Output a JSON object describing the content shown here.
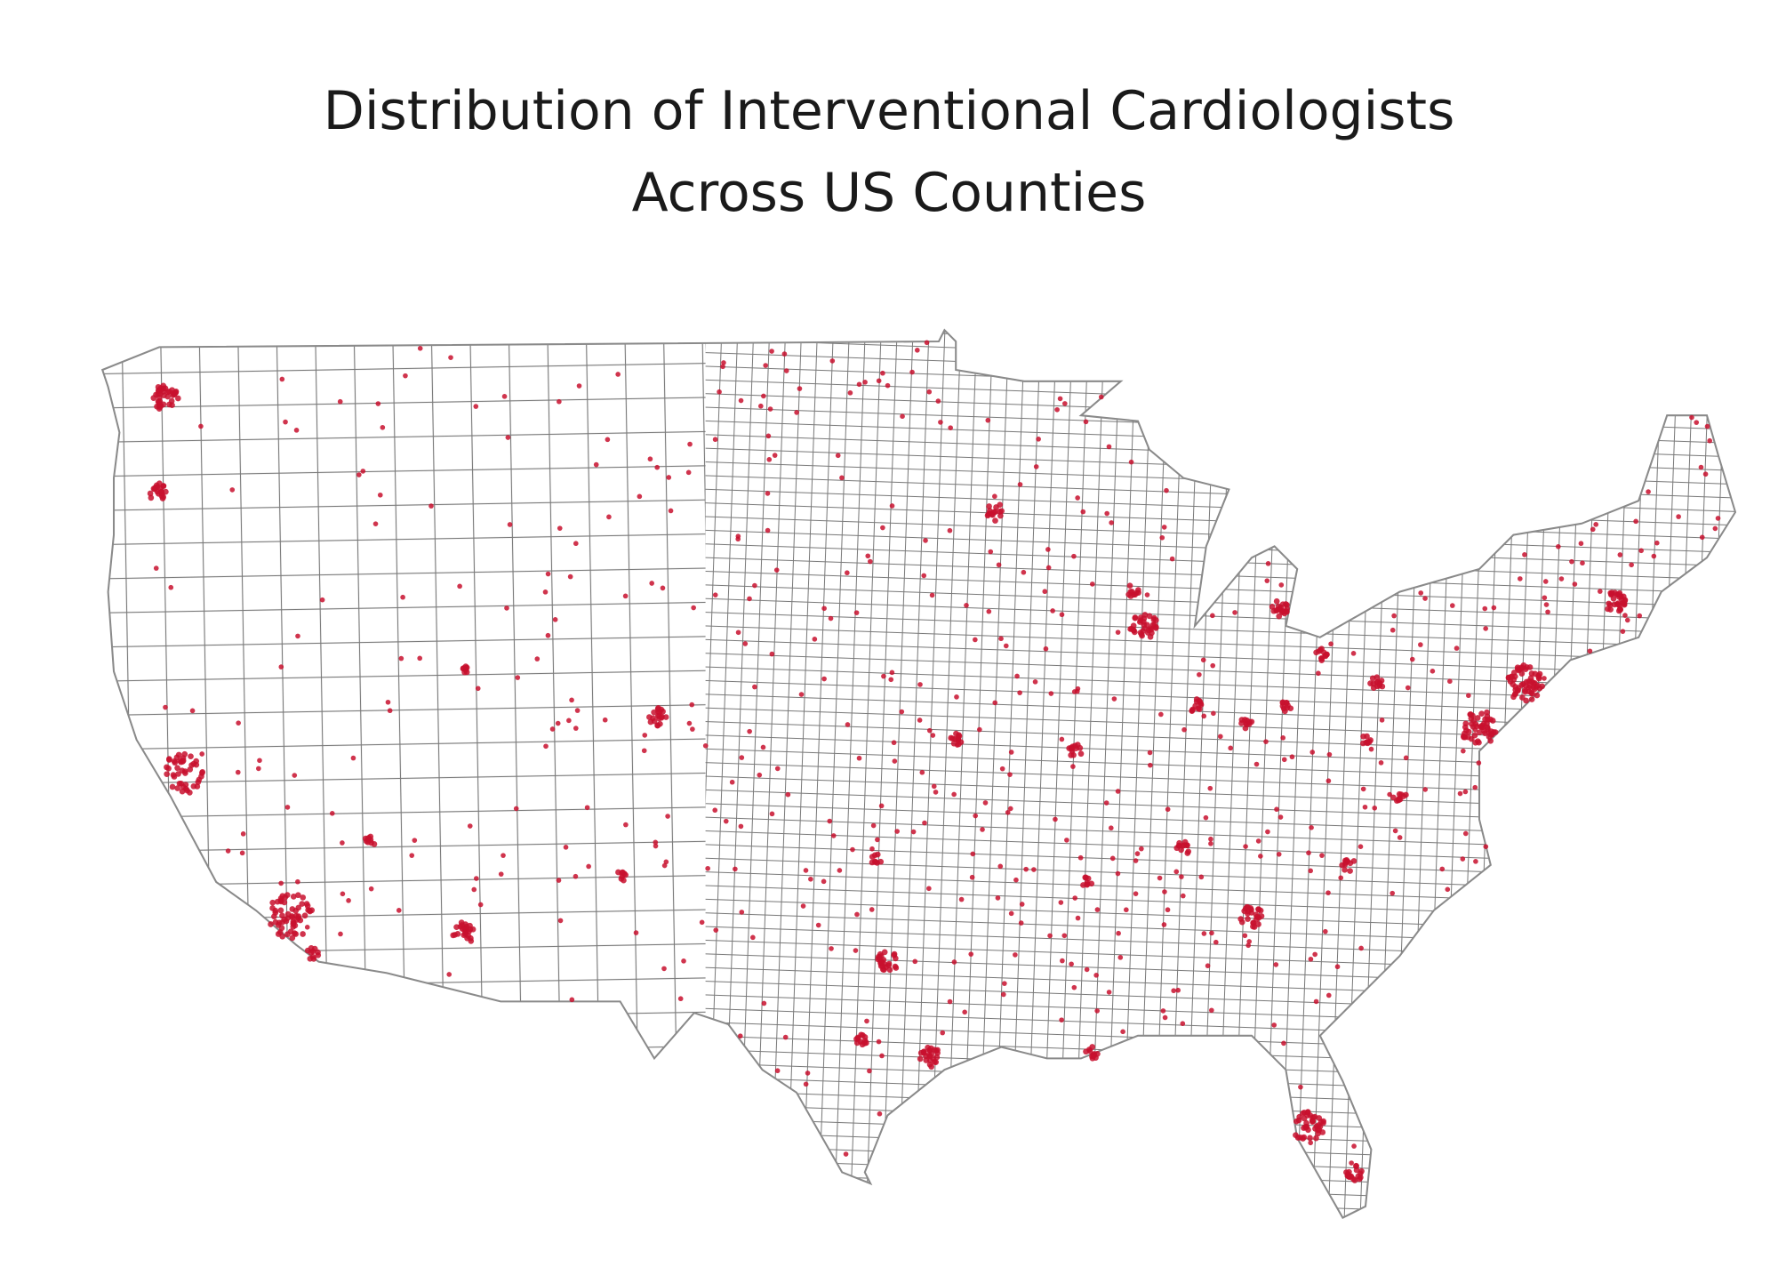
{
  "title": [
    "Distribution of Interventional Cardiologists",
    "Across US Counties"
  ]
}
